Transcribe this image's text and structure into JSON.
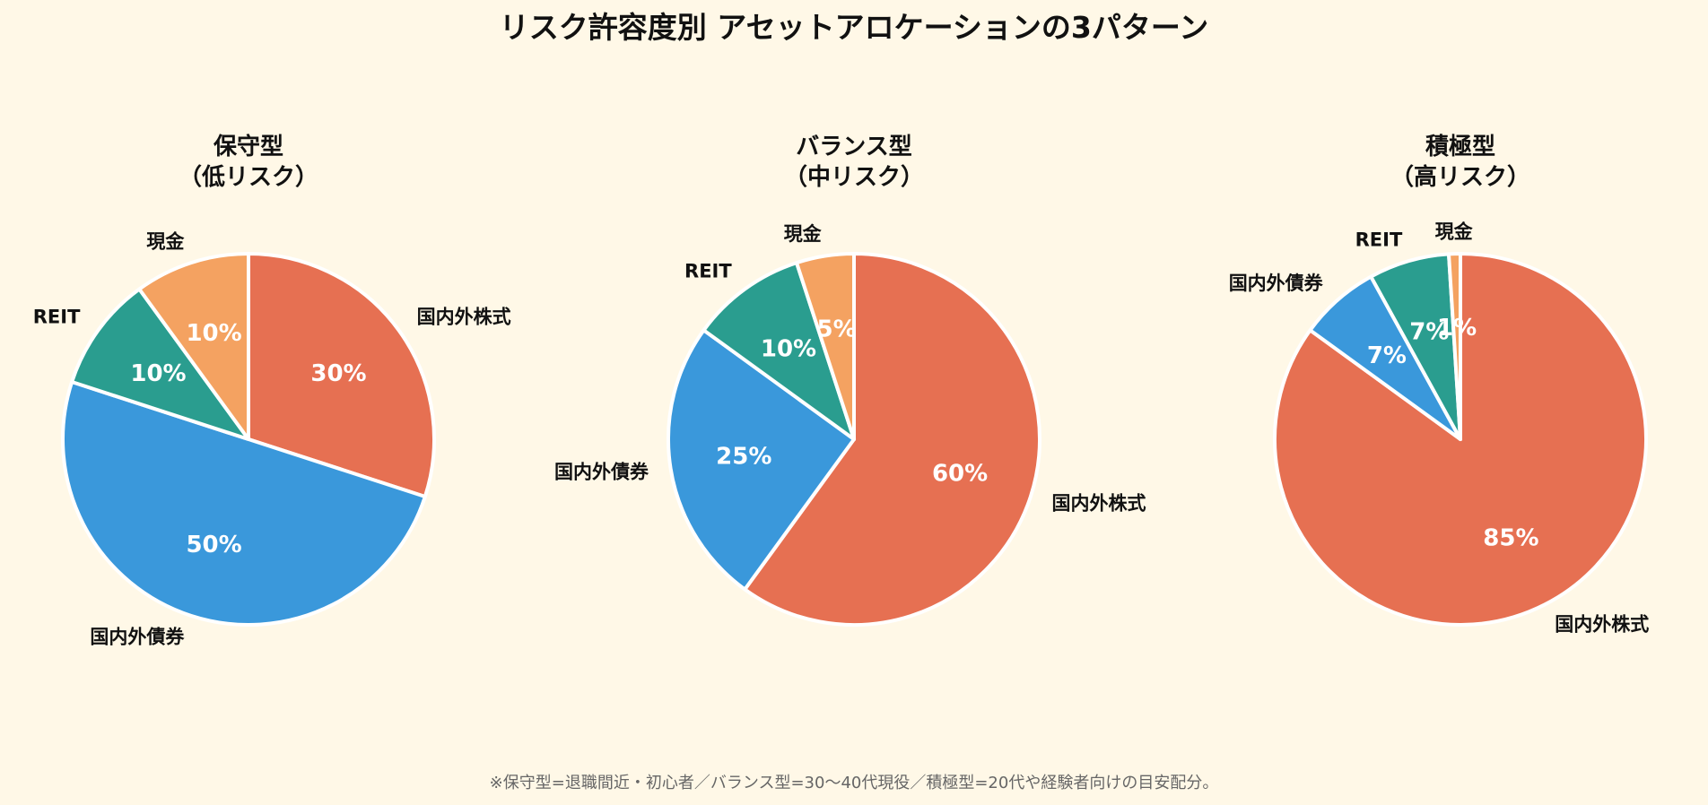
{
  "title": "リスク許容度別 アセットアロケーションの3パターン",
  "footnote": "※保守型=退職間近・初心者／バランス型=30〜40代現役／積極型=20代や経験者向けの目安配分。",
  "colors": {
    "background": "#fff8e7",
    "stocks": "#e67052",
    "bonds": "#3a98db",
    "reit": "#2a9d8f",
    "cash": "#f4a261"
  },
  "chart_data": [
    {
      "type": "pie",
      "title_line1": "保守型",
      "title_line2": "（低リスク）",
      "slices": [
        {
          "label": "国内外株式",
          "value": 30,
          "pct_label": "30%",
          "color": "#e67052"
        },
        {
          "label": "国内外債券",
          "value": 50,
          "pct_label": "50%",
          "color": "#3a98db"
        },
        {
          "label": "REIT",
          "value": 10,
          "pct_label": "10%",
          "color": "#2a9d8f"
        },
        {
          "label": "現金",
          "value": 10,
          "pct_label": "10%",
          "color": "#f4a261"
        }
      ]
    },
    {
      "type": "pie",
      "title_line1": "バランス型",
      "title_line2": "（中リスク）",
      "slices": [
        {
          "label": "国内外株式",
          "value": 60,
          "pct_label": "60%",
          "color": "#e67052"
        },
        {
          "label": "国内外債券",
          "value": 25,
          "pct_label": "25%",
          "color": "#3a98db"
        },
        {
          "label": "REIT",
          "value": 10,
          "pct_label": "10%",
          "color": "#2a9d8f"
        },
        {
          "label": "現金",
          "value": 5,
          "pct_label": "5%",
          "color": "#f4a261"
        }
      ]
    },
    {
      "type": "pie",
      "title_line1": "積極型",
      "title_line2": "（高リスク）",
      "slices": [
        {
          "label": "国内外株式",
          "value": 85,
          "pct_label": "85%",
          "color": "#e67052"
        },
        {
          "label": "国内外債券",
          "value": 7,
          "pct_label": "7%",
          "color": "#3a98db"
        },
        {
          "label": "REIT",
          "value": 7,
          "pct_label": "7%",
          "color": "#2a9d8f"
        },
        {
          "label": "現金",
          "value": 1,
          "pct_label": "1%",
          "color": "#f4a261"
        }
      ]
    }
  ]
}
